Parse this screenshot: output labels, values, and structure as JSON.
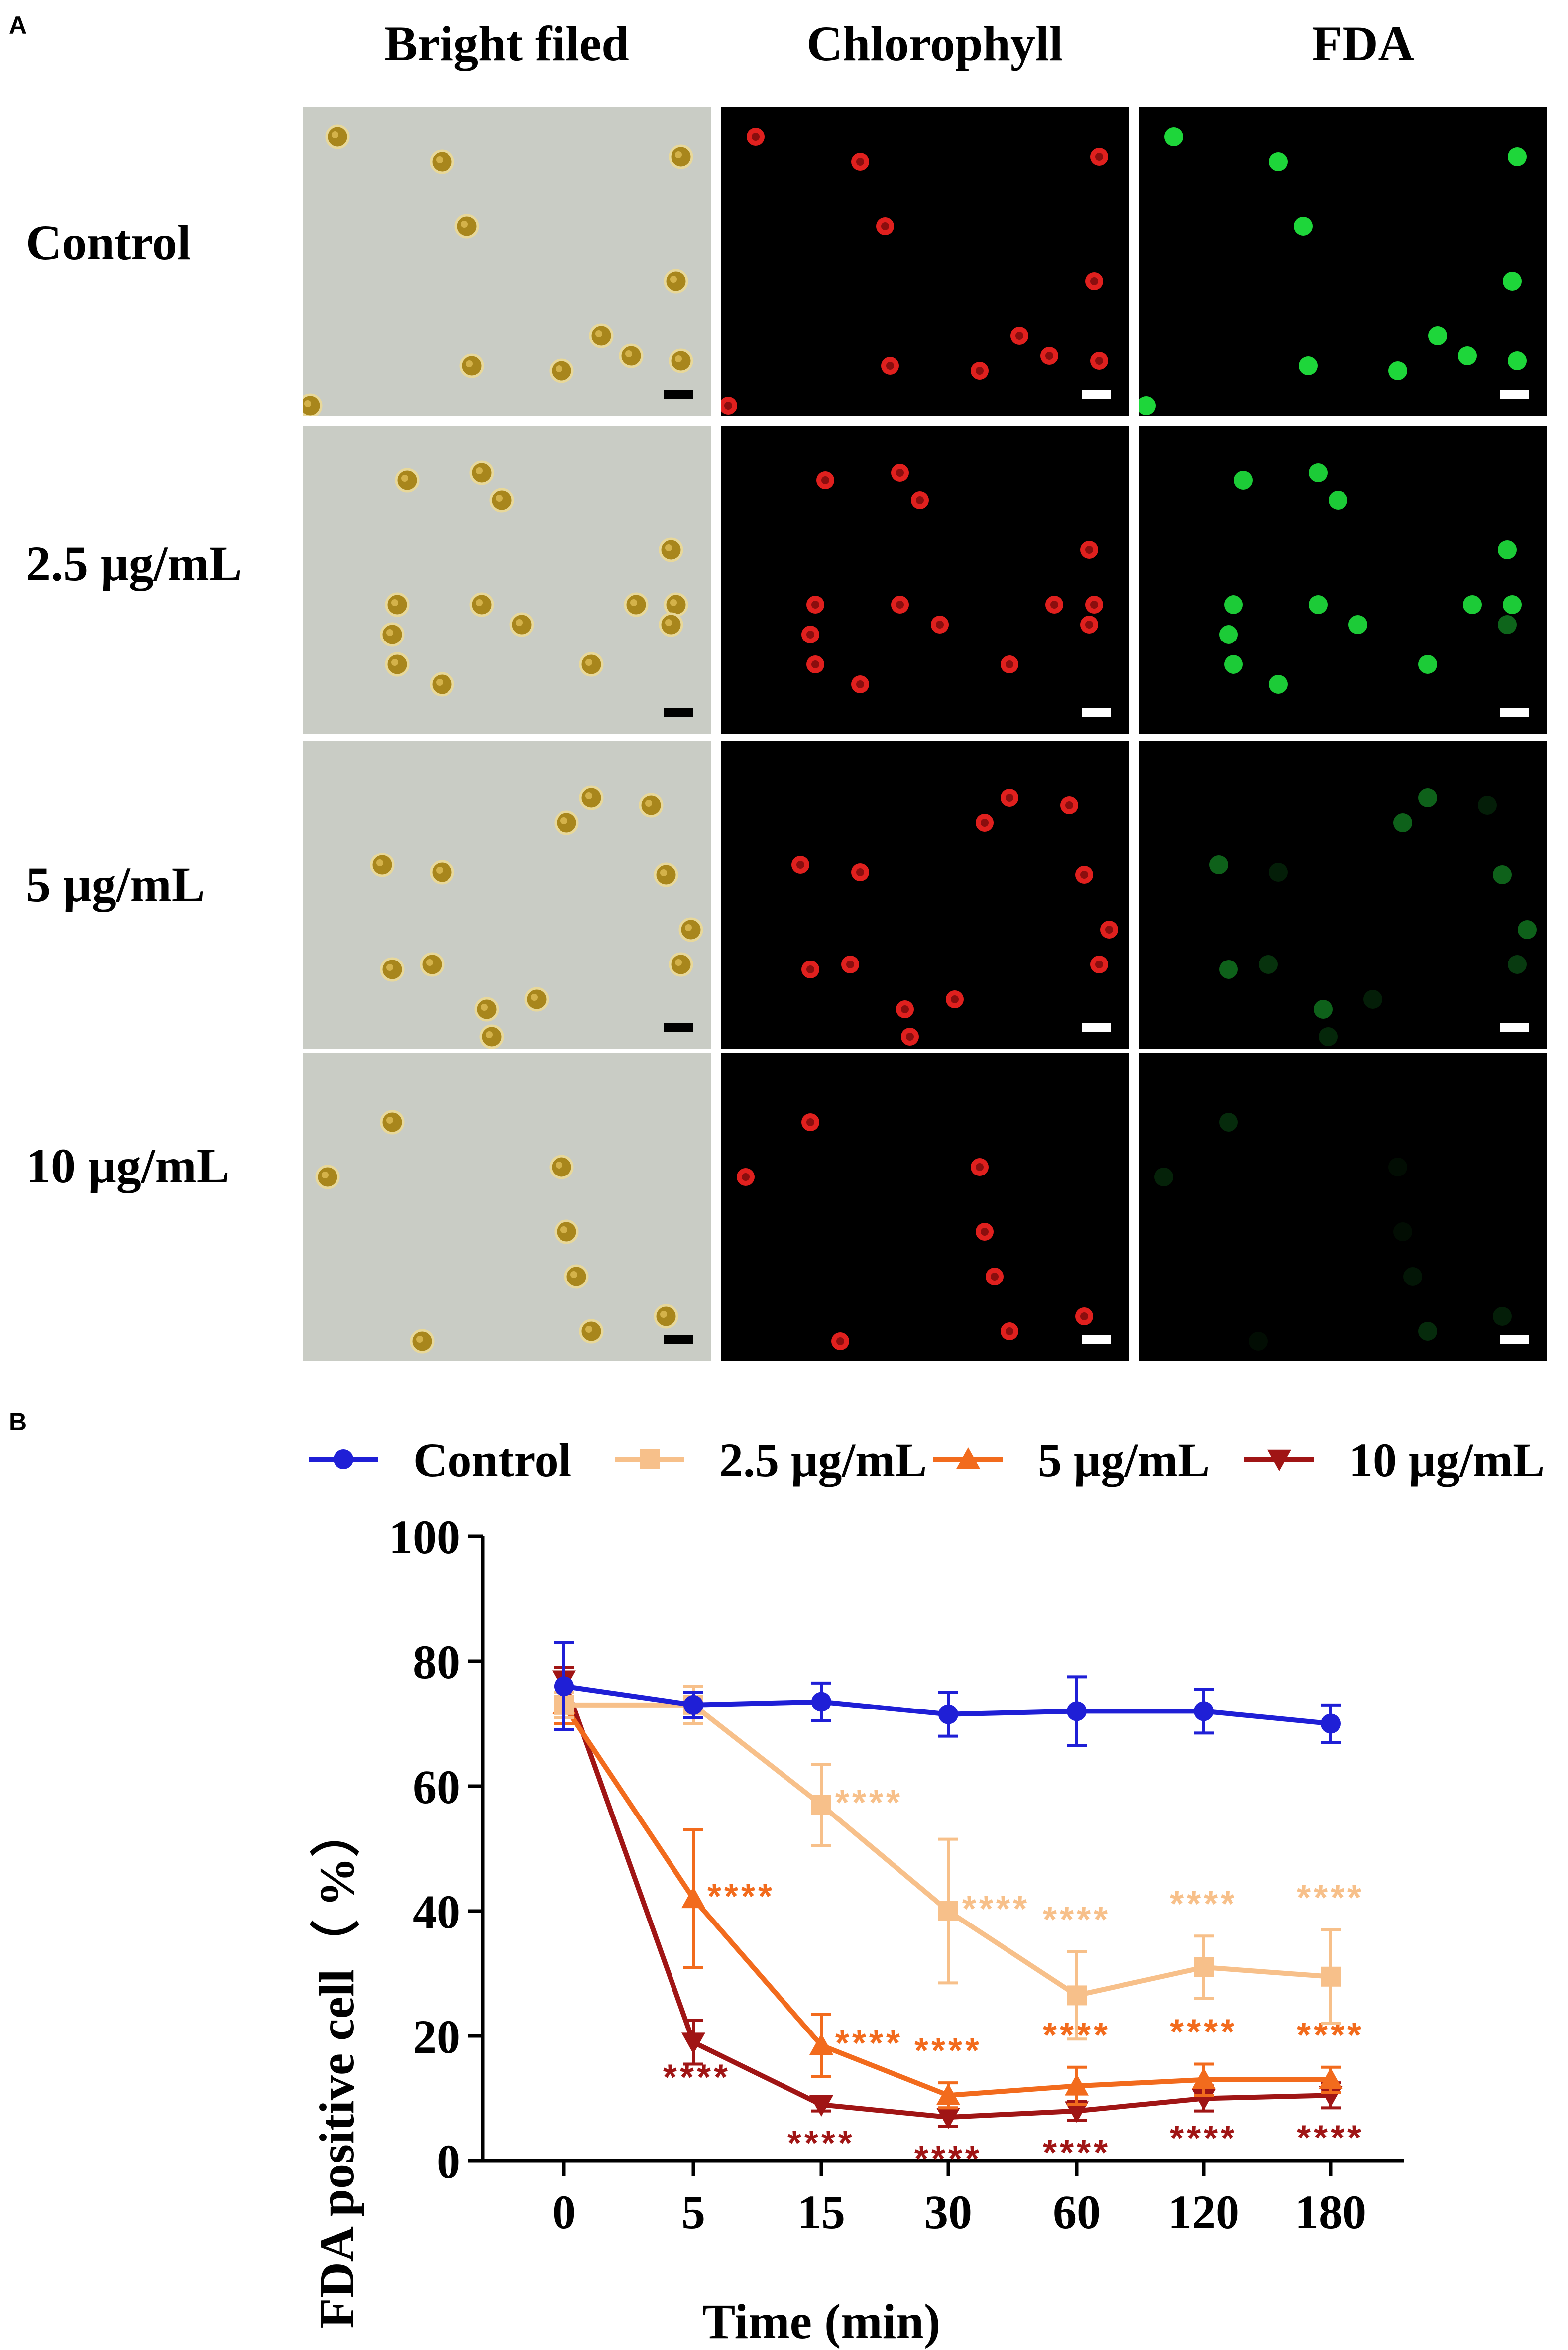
{
  "panel_a": {
    "letter": "A",
    "columns": [
      "Bright filed",
      "Chlorophyll",
      "FDA"
    ],
    "rows": [
      "Control",
      "2.5 μg/mL",
      "5 μg/mL",
      "10 μg/mL"
    ],
    "colors": {
      "bright_bg": "#c9ccc5",
      "cell_brown": "#a8861c",
      "chl_red": "#e0201e",
      "fda_green": "#1ed63a",
      "dark_bg": "#000000"
    },
    "fda_intensity": [
      1.0,
      0.95,
      0.45,
      0.2
    ]
  },
  "panel_b": {
    "letter": "B"
  },
  "chart_data": {
    "type": "line",
    "xlabel": "Time (min)",
    "ylabel": "FDA positive cell（ %）",
    "categories": [
      "0",
      "5",
      "15",
      "30",
      "60",
      "120",
      "180"
    ],
    "ylim": [
      0,
      100
    ],
    "yticks": [
      "0",
      "20",
      "40",
      "60",
      "80",
      "100"
    ],
    "legend_position": "top",
    "series": [
      {
        "name": "Control",
        "color": "#1f1fd6",
        "marker": "circle",
        "values": [
          76,
          73,
          73.5,
          71.5,
          72,
          72,
          70
        ],
        "errors": [
          7,
          2,
          3,
          3.5,
          5.5,
          3.5,
          3
        ],
        "stars": [
          "",
          "",
          "",
          "",
          "",
          "",
          ""
        ]
      },
      {
        "name": "2.5 μg/mL",
        "color": "#f7c08a",
        "marker": "square",
        "values": [
          73,
          73,
          57,
          40,
          26.5,
          31,
          29.5
        ],
        "errors": [
          2,
          3,
          6.5,
          11.5,
          7,
          5,
          7.5
        ],
        "stars": [
          "",
          "",
          "****",
          "****",
          "****",
          "****",
          "****"
        ]
      },
      {
        "name": "5 μg/mL",
        "color": "#f26b1d",
        "marker": "triangle-up",
        "values": [
          73,
          42,
          18.5,
          10.5,
          12,
          13,
          13
        ],
        "errors": [
          3,
          11,
          5,
          2,
          3,
          2.5,
          2
        ],
        "stars": [
          "",
          "****",
          "****",
          "****",
          "****",
          "****",
          "****"
        ]
      },
      {
        "name": "10 μg/mL",
        "color": "#a01515",
        "marker": "triangle-down",
        "values": [
          77,
          19,
          9,
          7,
          8,
          10,
          10.5
        ],
        "errors": [
          2,
          3.5,
          1,
          1.5,
          1.5,
          2,
          2
        ],
        "stars": [
          "",
          "****",
          "****",
          "****",
          "****",
          "****",
          "****"
        ]
      }
    ]
  }
}
